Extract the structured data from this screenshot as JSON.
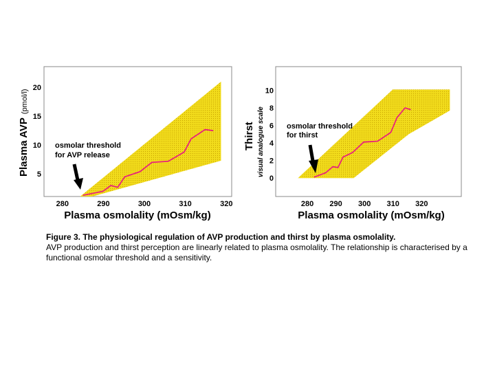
{
  "colors": {
    "band": "#f2dc1c",
    "band_dot": "#c9a500",
    "line": "#e8237a",
    "frame": "#888888",
    "arrow": "#000000"
  },
  "chart_data": [
    {
      "type": "line",
      "ylabel": "Plasma AVP",
      "ylabel_unit": "(pmol/l)",
      "xlabel": "Plasma osmolality (mOsm/kg)",
      "xlim": [
        275.5,
        321.3
      ],
      "ylim": [
        1.1,
        23.6
      ],
      "x_ticks": [
        280,
        290,
        300,
        310,
        320
      ],
      "y_ticks": [
        5,
        10,
        15,
        20
      ],
      "band_polygon": [
        [
          284.3,
          0.9
        ],
        [
          318.7,
          21.0
        ],
        [
          318.7,
          7.3
        ],
        [
          287.3,
          0.9
        ]
      ],
      "series": [
        {
          "x": [
            285.0,
            289.9,
            291.8,
            293.5,
            295.2,
            298.9,
            301.8,
            305.8,
            309.7,
            311.4,
            314.8,
            316.8
          ],
          "y": [
            1.3,
            2.0,
            3.0,
            2.7,
            4.5,
            5.4,
            7.0,
            7.2,
            8.8,
            11.1,
            12.7,
            12.5
          ]
        }
      ],
      "annotation": {
        "lines": [
          "osmolar threshold",
          "for AVP release"
        ]
      }
    },
    {
      "type": "line",
      "ylabel": "Thirst",
      "ylabel_sub": "visual analogue scale",
      "xlabel": "Plasma osmolality (mOsm/kg)",
      "xlim": [
        268.9,
        333.9
      ],
      "ylim": [
        -2.1,
        12.7
      ],
      "x_ticks": [
        280,
        290,
        300,
        310,
        320
      ],
      "y_ticks": [
        0,
        2,
        4,
        6,
        8,
        10
      ],
      "band_polygon": [
        [
          276.7,
          0.0
        ],
        [
          309.9,
          10.1
        ],
        [
          329.9,
          10.1
        ],
        [
          329.9,
          7.7
        ],
        [
          315.5,
          5.0
        ],
        [
          296.2,
          0.0
        ]
      ],
      "series": [
        {
          "x": [
            282.3,
            286.4,
            288.9,
            290.7,
            292.5,
            295.8,
            299.7,
            304.6,
            309.2,
            311.4,
            314.2,
            316.2
          ],
          "y": [
            0.1,
            0.6,
            1.3,
            1.2,
            2.4,
            2.9,
            4.1,
            4.2,
            5.2,
            6.9,
            8.0,
            7.8
          ]
        }
      ],
      "annotation": {
        "lines": [
          "osmolar threshold",
          "for thirst"
        ]
      }
    }
  ],
  "caption": {
    "title": "Figure 3. The physiological regulation of AVP production and thirst by plasma osmolality.",
    "body": "AVP production and thirst perception are linearly related to plasma osmolality. The relationship is characterised by a functional osmolar threshold and a sensitivity."
  }
}
